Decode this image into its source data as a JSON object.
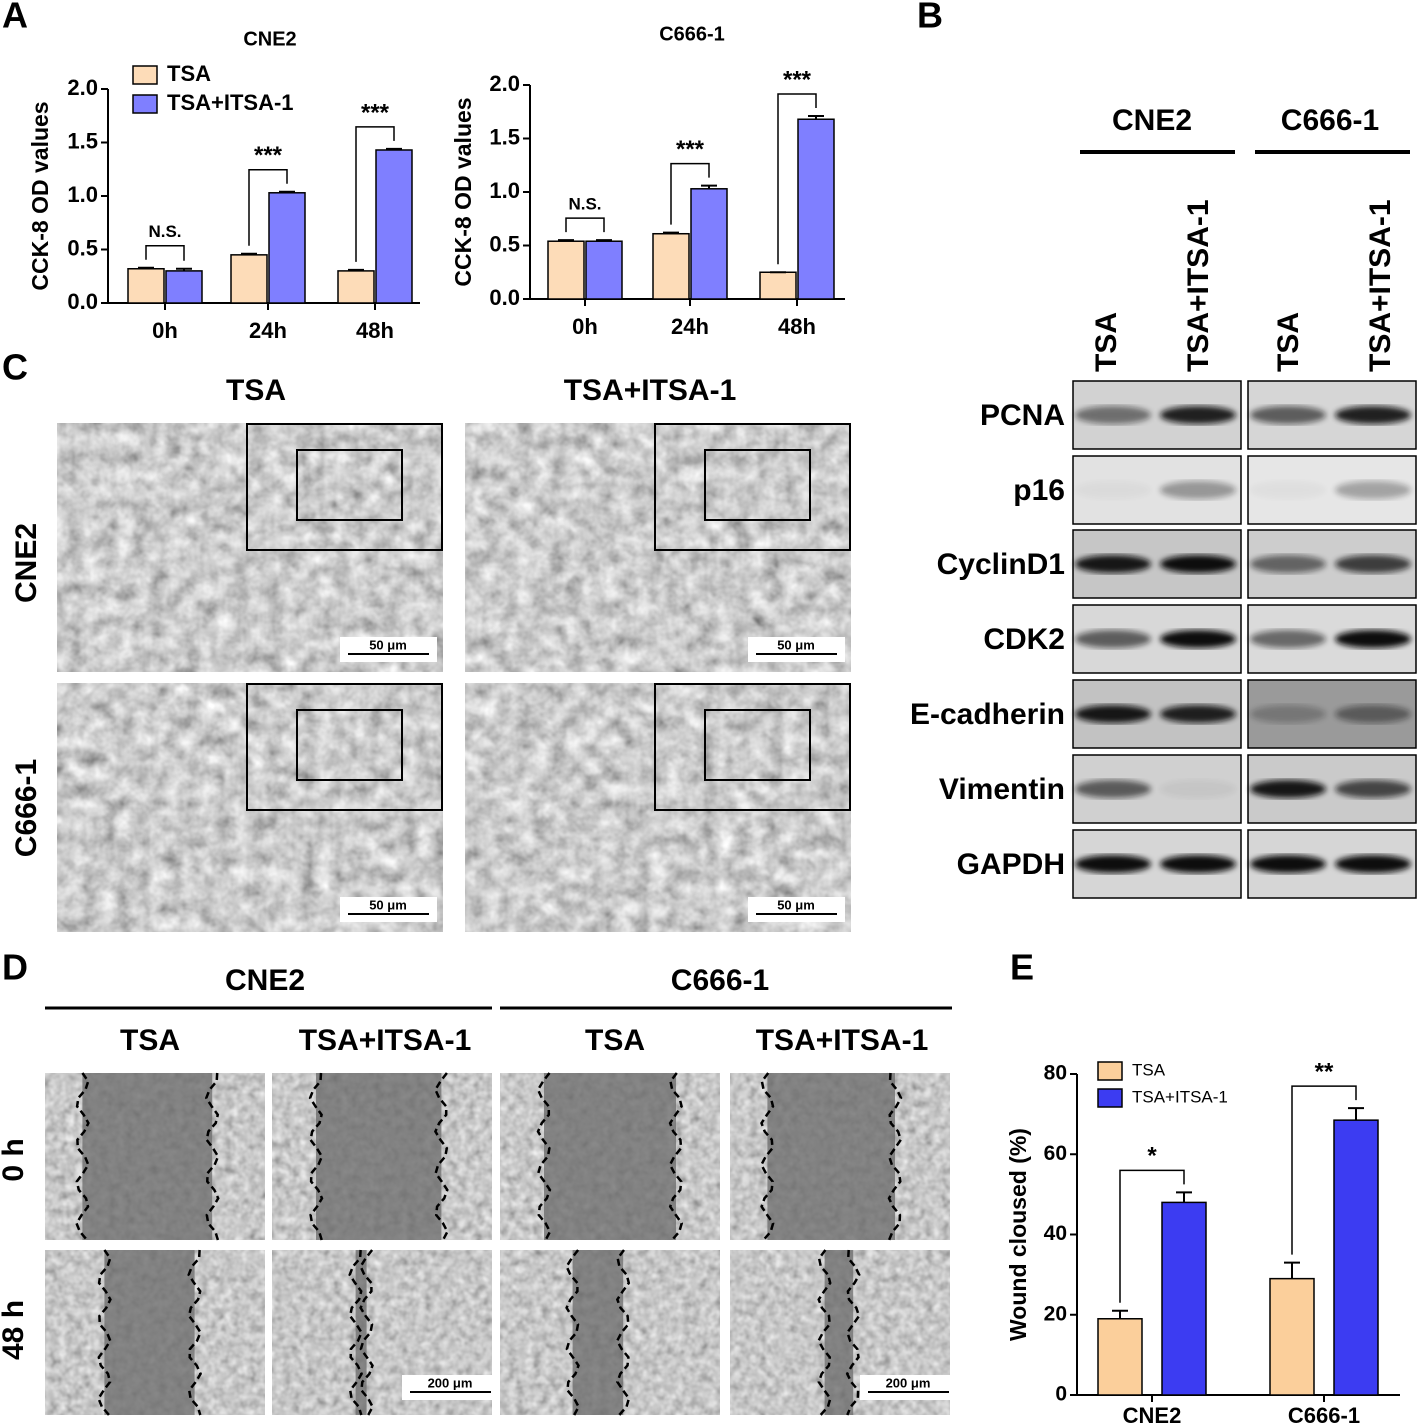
{
  "panel_labels": [
    "A",
    "B",
    "C",
    "D",
    "E"
  ],
  "chart_data": [
    {
      "type": "bar",
      "title": "CNE2",
      "y_label": "CCK-8 OD values",
      "categories": [
        "0h",
        "24h",
        "48h"
      ],
      "series": [
        {
          "name": "TSA",
          "color": "#fddcb8",
          "values": [
            0.32,
            0.45,
            0.3
          ],
          "errors": [
            0.01,
            0.01,
            0.01
          ]
        },
        {
          "name": "TSA+ITSA-1",
          "color": "#7f7fff",
          "values": [
            0.3,
            1.03,
            1.43
          ],
          "errors": [
            0.02,
            0.01,
            0.01
          ]
        }
      ],
      "annotations": [
        "N.S.",
        "***",
        "***"
      ],
      "ylim": [
        0,
        2
      ],
      "yticks": [
        {
          "value": 0,
          "label": "0.0"
        },
        0.5,
        {
          "value": 1,
          "label": "1.0"
        },
        1.5,
        {
          "value": 2,
          "label": "2.0"
        }
      ],
      "legend": "upper left"
    },
    {
      "type": "bar",
      "title": "C666-1",
      "y_label": "CCK-8 OD values",
      "categories": [
        "0h",
        "24h",
        "48h"
      ],
      "series": [
        {
          "color": "#fddcb8",
          "values": [
            0.54,
            0.61,
            0.25
          ],
          "errors": [
            0.01,
            0.01,
            0.0
          ]
        },
        {
          "color": "#7f7fff",
          "values": [
            0.54,
            1.03,
            1.68
          ],
          "errors": [
            0.01,
            0.03,
            0.03
          ]
        }
      ],
      "annotations": [
        "N.S.",
        "***",
        "***"
      ],
      "ylim": [
        0,
        2
      ],
      "yticks": [
        {
          "value": 0,
          "label": "0.0"
        },
        0.5,
        {
          "value": 1,
          "label": "1.0"
        },
        1.5,
        {
          "value": 2,
          "label": "2.0"
        }
      ]
    },
    {
      "type": "bar",
      "y_label": "Wound cloused (%)",
      "categories": [
        "CNE2",
        "C666-1"
      ],
      "series": [
        {
          "name": "TSA",
          "color": "#fbcf9b",
          "values": [
            19,
            29
          ],
          "errors": [
            2,
            4
          ]
        },
        {
          "name": "TSA+ITSA-1",
          "color": "#3c3cf2",
          "values": [
            48,
            68.5
          ],
          "errors": [
            2.5,
            3
          ]
        }
      ],
      "annotations": [
        "*",
        "**"
      ],
      "ylim": [
        0,
        80
      ],
      "yticks": [
        0,
        20,
        40,
        60,
        80
      ],
      "legend": "upper left"
    }
  ],
  "panel_b": {
    "groups": [
      "CNE2",
      "C666-1"
    ],
    "lanes": [
      "TSA",
      "TSA+ITSA-1"
    ],
    "proteins": [
      "PCNA",
      "p16",
      "CyclinD1",
      "CDK2",
      "E-cadherin",
      "Vimentin",
      "GAPDH"
    ]
  },
  "panel_c": {
    "columns": [
      "TSA",
      "TSA+ITSA-1"
    ],
    "rows": [
      "CNE2",
      "C666-1"
    ],
    "scale_bar": "50 μm"
  },
  "panel_d": {
    "groups": [
      "CNE2",
      "C666-1"
    ],
    "lanes": [
      "TSA",
      "TSA+ITSA-1"
    ],
    "rows": [
      "0 h",
      "48 h"
    ],
    "scale_bar": "200 μm"
  }
}
